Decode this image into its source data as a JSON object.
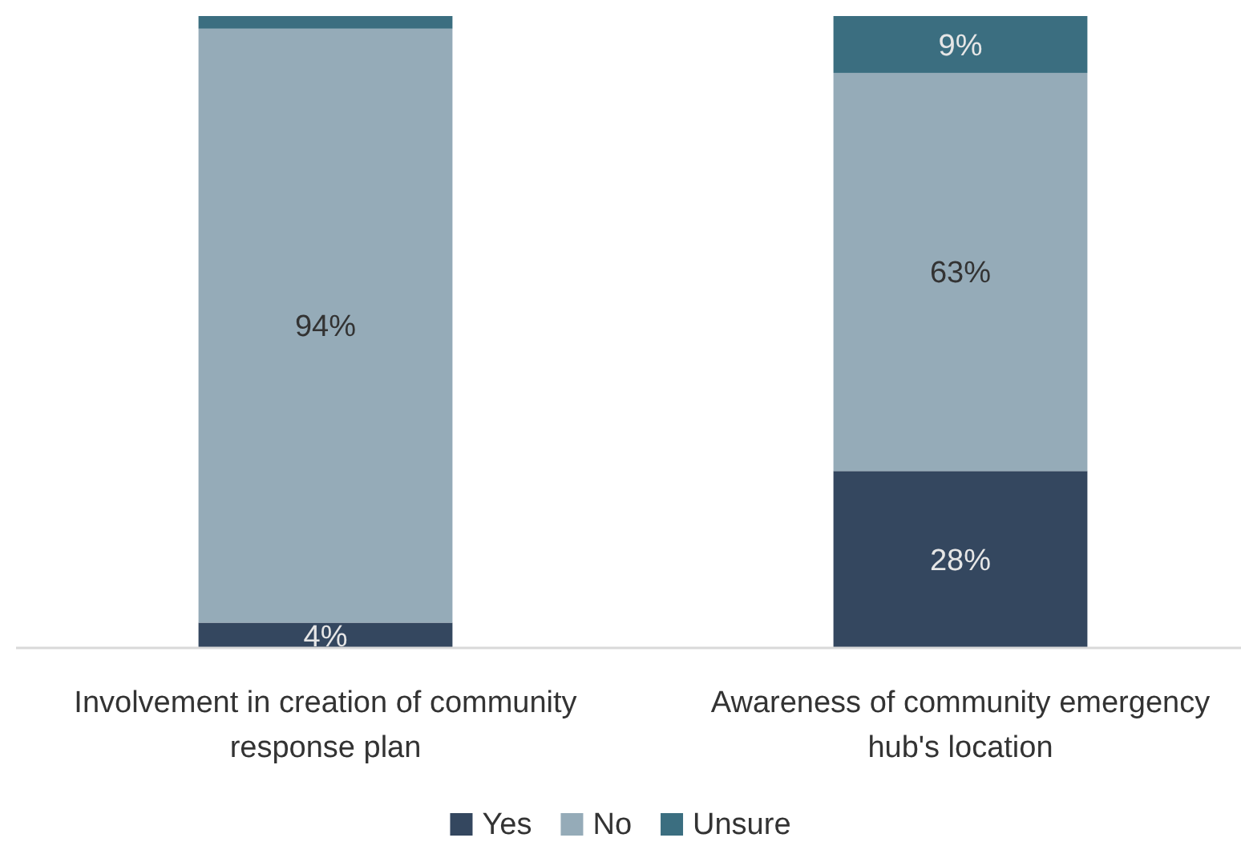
{
  "chart_data": {
    "type": "bar",
    "stacked": true,
    "categories": [
      "Involvement in creation of community response plan",
      "Awareness of community emergency hub's location"
    ],
    "ylim": [
      0,
      100
    ],
    "legend": "bottom",
    "grid": false,
    "series": [
      {
        "name": "Yes",
        "color": "#34475f",
        "values": [
          4,
          28
        ],
        "value_labels": [
          "4%",
          "28%"
        ]
      },
      {
        "name": "No",
        "color": "#95abb8",
        "values": [
          94,
          63
        ],
        "value_labels": [
          "94%",
          "63%"
        ]
      },
      {
        "name": "Unsure",
        "color": "#3b6e80",
        "values": [
          2,
          9
        ],
        "value_labels": [
          null,
          "9%"
        ]
      }
    ]
  }
}
